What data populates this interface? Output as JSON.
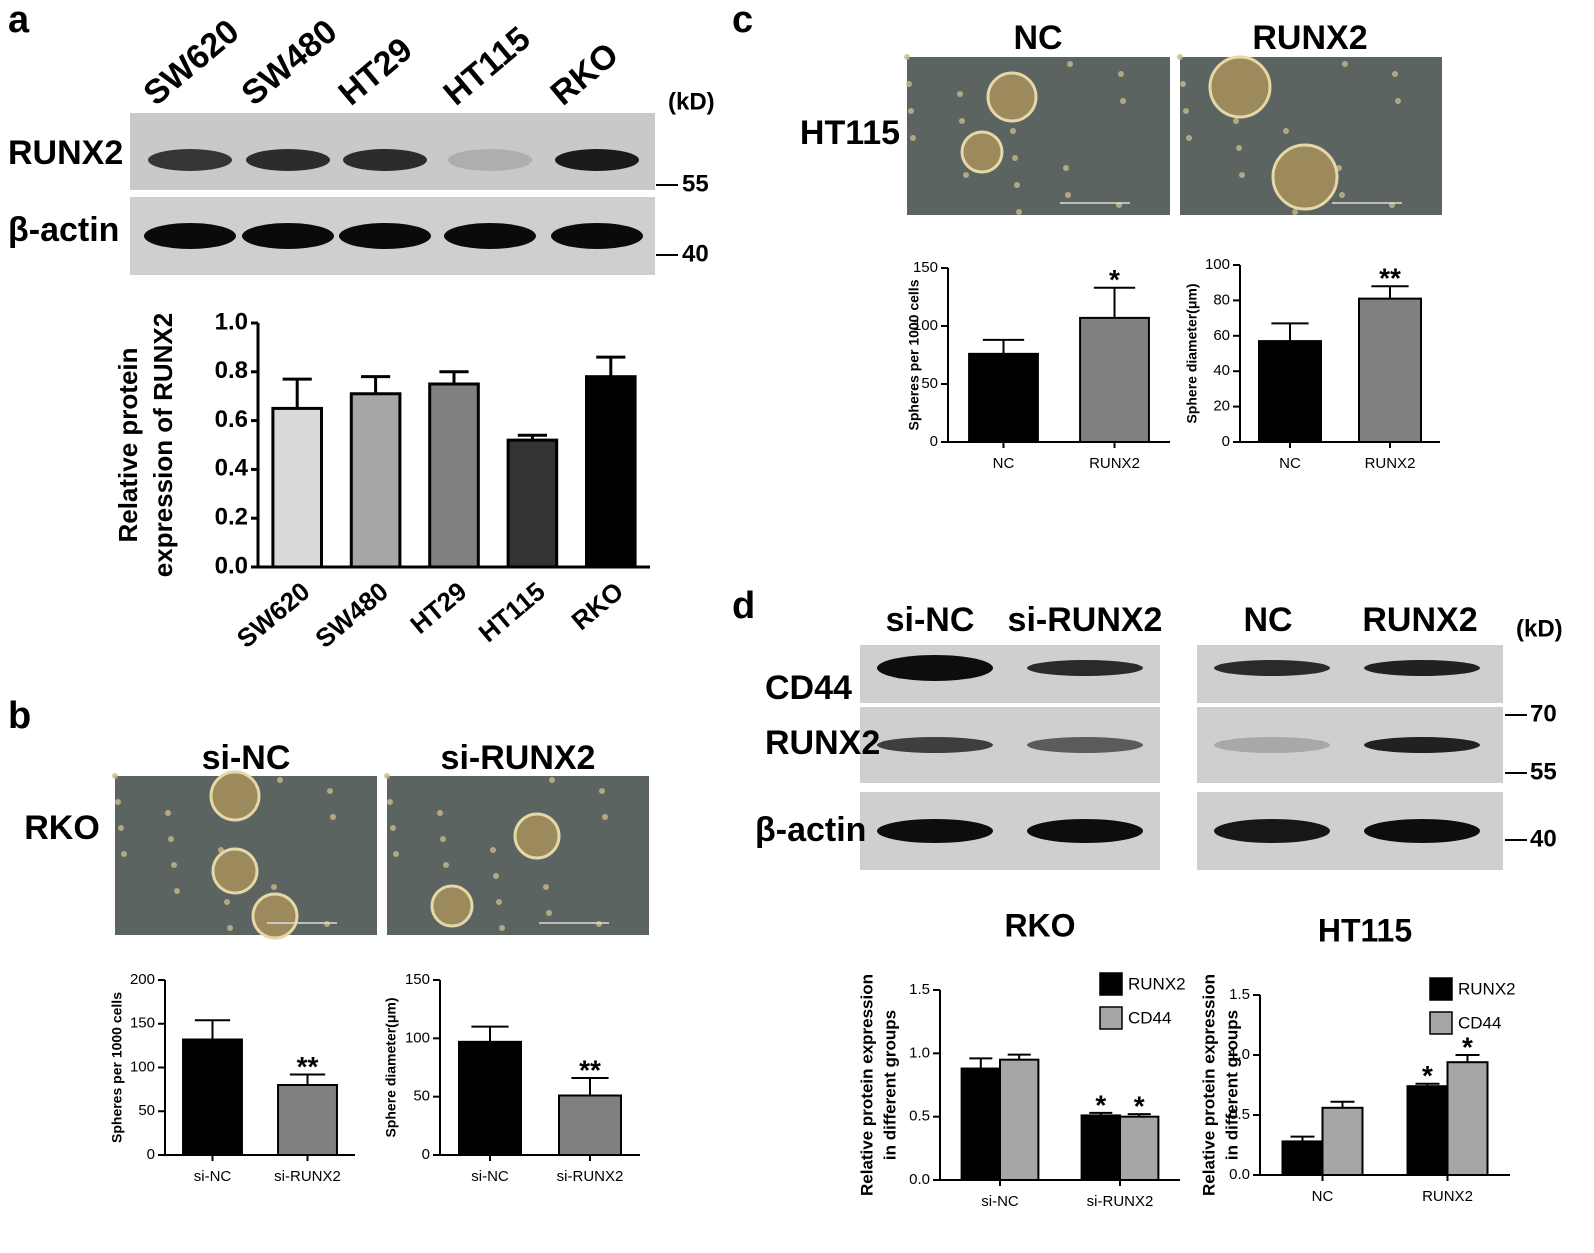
{
  "panel_labels": [
    "a",
    "b",
    "c",
    "d"
  ],
  "blot_a": {
    "lanes": [
      "SW620",
      "SW480",
      "HT29",
      "HT115",
      "RKO"
    ],
    "rows": [
      "RUNX2",
      "β-actin"
    ],
    "unit": "(kD)",
    "markers": [
      55,
      40
    ]
  },
  "images_b": {
    "columns": [
      "si-NC",
      "si-RUNX2"
    ],
    "row": "RKO"
  },
  "images_c": {
    "columns": [
      "NC",
      "RUNX2"
    ],
    "row": "HT115"
  },
  "blot_d": {
    "columns": [
      "si-NC",
      "si-RUNX2",
      "NC",
      "RUNX2"
    ],
    "rows": [
      "CD44",
      "RUNX2",
      "β-actin"
    ],
    "unit": "(kD)",
    "markers": [
      70,
      55,
      40
    ]
  },
  "chart_data": [
    {
      "type": "bar",
      "categories": [
        "SW620",
        "SW480",
        "HT29",
        "HT115",
        "RKO"
      ],
      "series": [
        {
          "colors": [
            "#d9d9d9",
            "#a6a6a6",
            "#808080",
            "#333333",
            "#000000"
          ],
          "values": [
            0.65,
            0.71,
            0.75,
            0.52,
            0.78
          ],
          "errors": [
            0.12,
            0.07,
            0.05,
            0.02,
            0.08
          ]
        }
      ],
      "ylabel": [
        "Relative protein",
        "expression of RUNX2"
      ],
      "ylim": [
        0,
        1.0
      ],
      "yticks": [
        {
          "value": 0,
          "label": "0.0"
        },
        0.2,
        0.4,
        0.6,
        0.8,
        {
          "value": 1.0,
          "label": "1.0"
        }
      ]
    },
    {
      "type": "bar",
      "categories": [
        "si-NC",
        "si-RUNX2"
      ],
      "series": [
        {
          "colors": [
            "#000000",
            "#808080"
          ],
          "values": [
            132,
            80
          ],
          "errors": [
            22,
            12
          ],
          "significance": [
            null,
            "**"
          ]
        }
      ],
      "ylabel": [
        "Spheres per 1000 cells"
      ],
      "ylim": [
        0,
        200
      ],
      "yticks": [
        0,
        50,
        100,
        150,
        200
      ]
    },
    {
      "type": "bar",
      "categories": [
        "si-NC",
        "si-RUNX2"
      ],
      "series": [
        {
          "colors": [
            "#000000",
            "#808080"
          ],
          "values": [
            97,
            51
          ],
          "errors": [
            13,
            15
          ],
          "significance": [
            null,
            "**"
          ]
        }
      ],
      "ylabel": [
        "Sphere diameter(μm)"
      ],
      "ylim": [
        0,
        150
      ],
      "yticks": [
        0,
        50,
        100,
        150
      ]
    },
    {
      "type": "bar",
      "categories": [
        "NC",
        "RUNX2"
      ],
      "series": [
        {
          "colors": [
            "#000000",
            "#808080"
          ],
          "values": [
            76,
            107
          ],
          "errors": [
            12,
            26
          ],
          "significance": [
            null,
            "*"
          ]
        }
      ],
      "ylabel": [
        "Spheres per 1000 cells"
      ],
      "ylim": [
        0,
        150
      ],
      "yticks": [
        0,
        50,
        100,
        150
      ]
    },
    {
      "type": "bar",
      "categories": [
        "NC",
        "RUNX2"
      ],
      "series": [
        {
          "colors": [
            "#000000",
            "#808080"
          ],
          "values": [
            57,
            81
          ],
          "errors": [
            10,
            7
          ],
          "significance": [
            null,
            "**"
          ]
        }
      ],
      "ylabel": [
        "Sphere diameter(μm)"
      ],
      "ylim": [
        0,
        100
      ],
      "yticks": [
        0,
        20,
        40,
        60,
        80,
        100
      ]
    },
    {
      "type": "bar",
      "title": "RKO",
      "categories": [
        "si-NC",
        "si-RUNX2"
      ],
      "series": [
        {
          "name": "RUNX2",
          "color": "#000000",
          "values": [
            0.88,
            0.51
          ],
          "errors": [
            0.08,
            0.02
          ],
          "significance": [
            null,
            "*"
          ]
        },
        {
          "name": "CD44",
          "color": "#a6a6a6",
          "values": [
            0.95,
            0.5
          ],
          "errors": [
            0.04,
            0.02
          ],
          "significance": [
            null,
            "*"
          ]
        }
      ],
      "ylabel": [
        "Relative protein expression",
        "in different groups"
      ],
      "ylim": [
        0,
        1.5
      ],
      "yticks": [
        {
          "value": 0,
          "label": "0.0"
        },
        0.5,
        {
          "value": 1,
          "label": "1.0"
        },
        1.5
      ],
      "legend": "upper right"
    },
    {
      "type": "bar",
      "title": "HT115",
      "categories": [
        "NC",
        "RUNX2"
      ],
      "series": [
        {
          "name": "RUNX2",
          "color": "#000000",
          "values": [
            0.28,
            0.74
          ],
          "errors": [
            0.04,
            0.02
          ],
          "significance": [
            null,
            "*"
          ]
        },
        {
          "name": "CD44",
          "color": "#a6a6a6",
          "values": [
            0.56,
            0.94
          ],
          "errors": [
            0.05,
            0.06
          ],
          "significance": [
            null,
            "*"
          ]
        }
      ],
      "ylabel": [
        "Relative protein expression",
        "in different groups"
      ],
      "ylim": [
        0,
        1.5
      ],
      "yticks": [
        {
          "value": 0,
          "label": "0.0"
        },
        0.5,
        {
          "value": 1,
          "label": "1.0"
        },
        1.5
      ],
      "legend": "upper right"
    }
  ]
}
